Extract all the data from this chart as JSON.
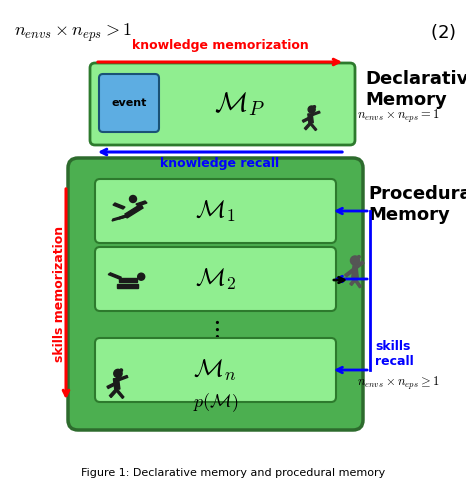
{
  "bg_color": "#ffffff",
  "decl_box_color": "#90EE90",
  "decl_box_edge": "#2d7a2d",
  "proc_outer_color": "#4CAF50",
  "proc_outer_edge": "#2d6b2d",
  "proc_inner_color": "#90EE90",
  "proc_inner_edge": "#2d7a2d",
  "event_box_color": "#5DADE2",
  "event_box_edge": "#1a5276",
  "arrow_red": "#FF0000",
  "arrow_blue": "#0000FF",
  "arrow_black": "#000000",
  "text_red": "#FF0000",
  "text_blue": "#0000FF",
  "text_black": "#000000",
  "text_gray": "#555555",
  "decl_title": "Declarative\nMemory",
  "decl_formula": "$n_{envs} \\times n_{eps} = 1$",
  "proc_title": "Procedural\nMemory",
  "proc_formula": "$n_{envs} \\times n_{eps} \\geq 1$",
  "km_label": "knowledge memorization",
  "kr_label": "knowledge recall",
  "sm_label": "skills memorization",
  "sr_label": "skills\nrecall",
  "event_label": "event",
  "fig_caption": "Figure 1: Declarative memory and procedural memory"
}
